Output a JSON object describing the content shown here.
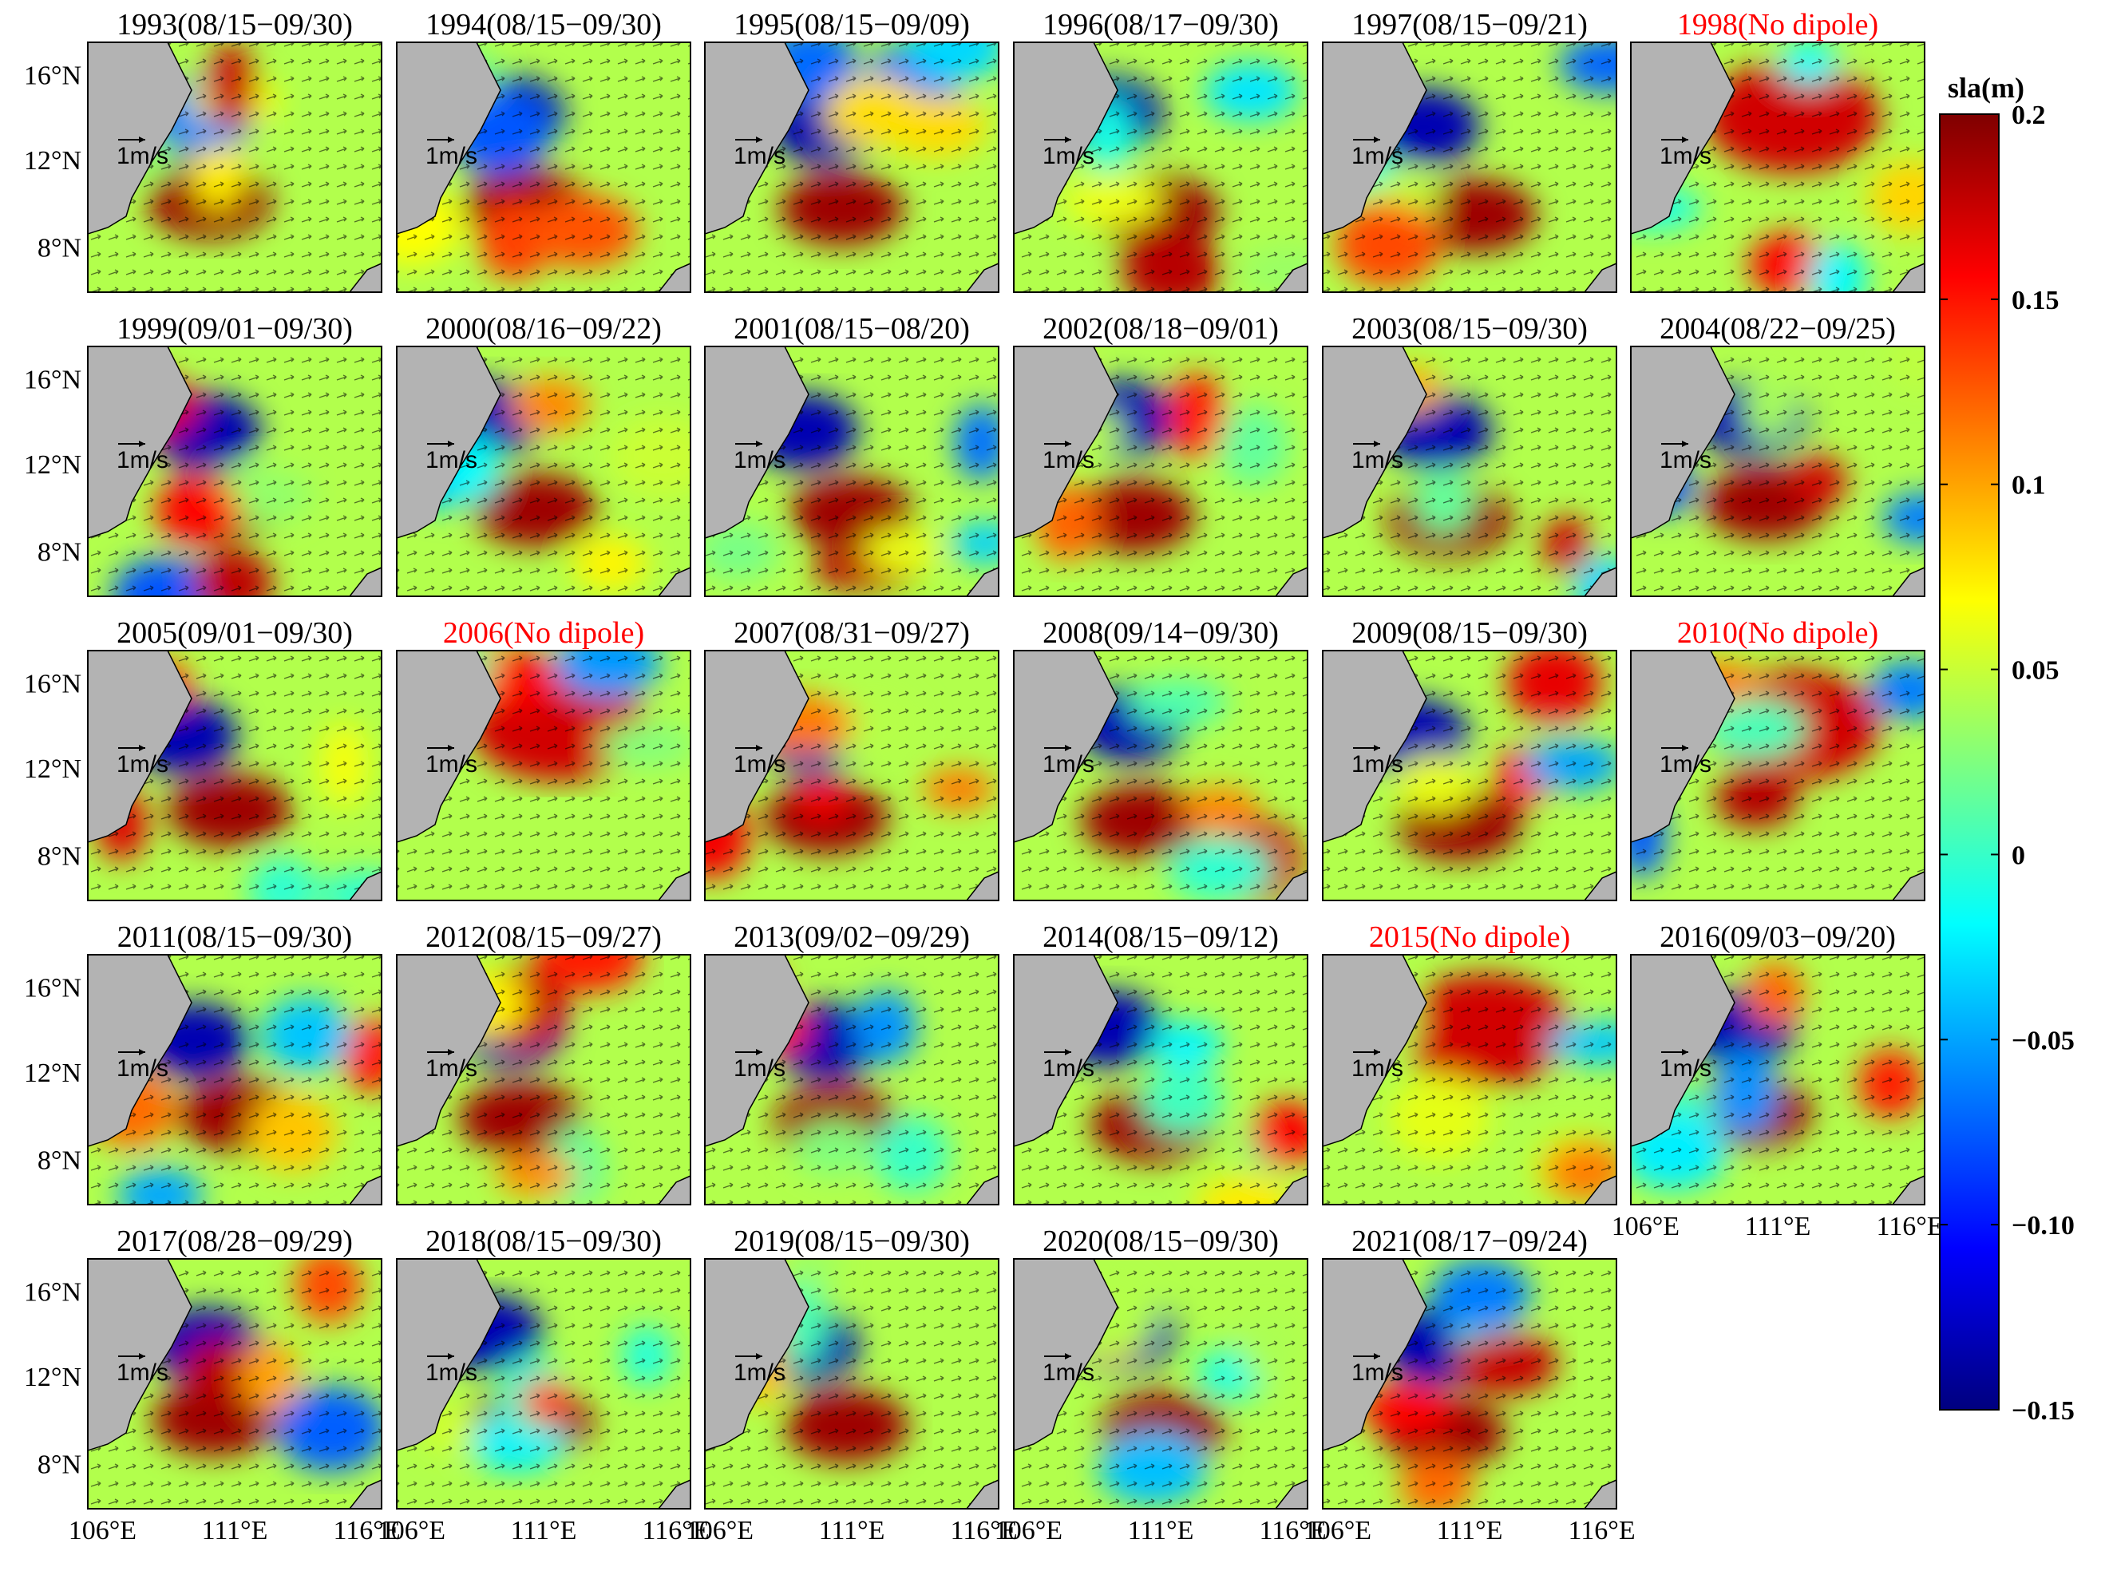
{
  "figure": {
    "panel_titles": [
      {
        "text": "1993(08/15−09/30)",
        "color": "#000000"
      },
      {
        "text": "1994(08/15−09/30)",
        "color": "#000000"
      },
      {
        "text": "1995(08/15−09/09)",
        "color": "#000000"
      },
      {
        "text": "1996(08/17−09/30)",
        "color": "#000000"
      },
      {
        "text": "1997(08/15−09/21)",
        "color": "#000000"
      },
      {
        "text": "1998(No dipole)",
        "color": "#ff0000"
      },
      {
        "text": "1999(09/01−09/30)",
        "color": "#000000"
      },
      {
        "text": "2000(08/16−09/22)",
        "color": "#000000"
      },
      {
        "text": "2001(08/15−08/20)",
        "color": "#000000"
      },
      {
        "text": "2002(08/18−09/01)",
        "color": "#000000"
      },
      {
        "text": "2003(08/15−09/30)",
        "color": "#000000"
      },
      {
        "text": "2004(08/22−09/25)",
        "color": "#000000"
      },
      {
        "text": "2005(09/01−09/30)",
        "color": "#000000"
      },
      {
        "text": "2006(No dipole)",
        "color": "#ff0000"
      },
      {
        "text": "2007(08/31−09/27)",
        "color": "#000000"
      },
      {
        "text": "2008(09/14−09/30)",
        "color": "#000000"
      },
      {
        "text": "2009(08/15−09/30)",
        "color": "#000000"
      },
      {
        "text": "2010(No dipole)",
        "color": "#ff0000"
      },
      {
        "text": "2011(08/15−09/30)",
        "color": "#000000"
      },
      {
        "text": "2012(08/15−09/27)",
        "color": "#000000"
      },
      {
        "text": "2013(09/02−09/29)",
        "color": "#000000"
      },
      {
        "text": "2014(08/15−09/12)",
        "color": "#000000"
      },
      {
        "text": "2015(No dipole)",
        "color": "#ff0000"
      },
      {
        "text": "2016(09/03−09/20)",
        "color": "#000000"
      },
      {
        "text": "2017(08/28−09/29)",
        "color": "#000000"
      },
      {
        "text": "2018(08/15−09/30)",
        "color": "#000000"
      },
      {
        "text": "2019(08/15−09/30)",
        "color": "#000000"
      },
      {
        "text": "2020(08/15−09/30)",
        "color": "#000000"
      },
      {
        "text": "2021(08/17−09/24)",
        "color": "#000000"
      }
    ],
    "y_ticks": [
      "16°N",
      "12°N",
      "8°N"
    ],
    "x_ticks": [
      "106°E",
      "111°E",
      "116°E"
    ],
    "reference_vector_label": "1m/s",
    "colorbar": {
      "title": "sla(m)",
      "ticks": [
        "0.2",
        "0.15",
        "0.1",
        "0.05",
        "0",
        "−0.05",
        "−0.10",
        "−0.15"
      ],
      "tick_values": [
        0.2,
        0.15,
        0.1,
        0.05,
        0,
        -0.05,
        -0.1,
        -0.15
      ],
      "range": [
        -0.15,
        0.2
      ],
      "colors": [
        "#00007f",
        "#0000ff",
        "#007fff",
        "#00ffff",
        "#7fff7f",
        "#ffff00",
        "#ff7f00",
        "#ff0000",
        "#7f0000"
      ]
    },
    "colors": {
      "land": "#b3b3b3",
      "normal_title": "#000000",
      "no_dipole_title": "#ff0000"
    }
  }
}
